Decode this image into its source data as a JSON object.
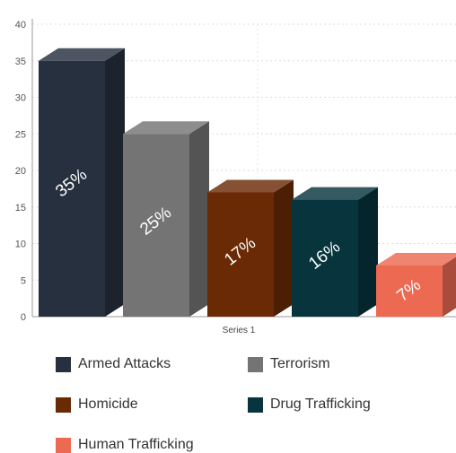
{
  "chart_data": {
    "type": "bar",
    "categories": [
      "Series 1"
    ],
    "xlabel": "Series 1",
    "ylim": [
      0,
      40
    ],
    "yticks": [
      0,
      5,
      10,
      15,
      20,
      25,
      30,
      35,
      40
    ],
    "grid": true,
    "style": "3d",
    "legend_position": "bottom",
    "series": [
      {
        "name": "Armed Attacks",
        "value": 35,
        "label": "35%",
        "color": "#27303f"
      },
      {
        "name": "Terrorism",
        "value": 25,
        "label": "25%",
        "color": "#747474"
      },
      {
        "name": "Homicide",
        "value": 17,
        "label": "17%",
        "color": "#6a2a06"
      },
      {
        "name": "Drug Trafficking",
        "value": 16,
        "label": "16%",
        "color": "#07343d"
      },
      {
        "name": "Human Trafficking",
        "value": 7,
        "label": "7%",
        "color": "#ec6a52"
      }
    ]
  }
}
